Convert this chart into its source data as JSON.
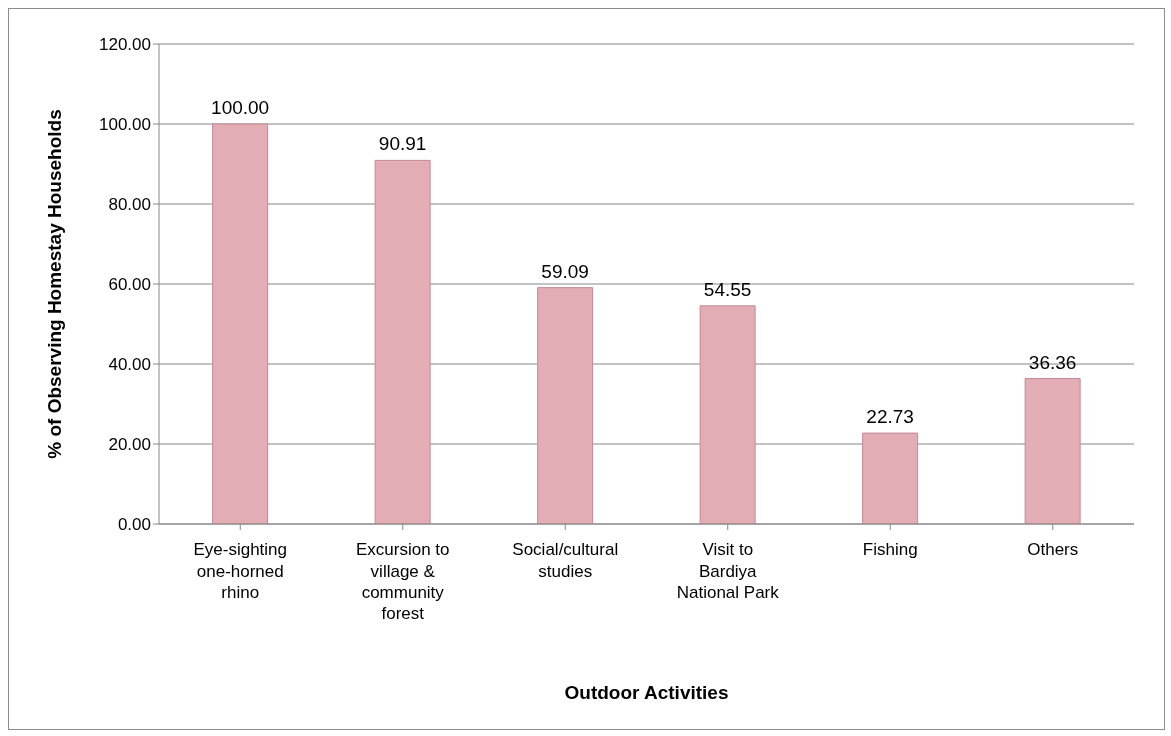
{
  "chart_data": {
    "type": "bar",
    "xlabel": "Outdoor Activities",
    "ylabel": "% of Observing Homestay Households",
    "categories": [
      "Eye-sighting one-horned rhino",
      "Excursion to village & community forest",
      "Social/cultural studies",
      "Visit to Bardiya National Park",
      "Fishing",
      "Others"
    ],
    "values": [
      100.0,
      90.91,
      59.09,
      54.55,
      22.73,
      36.36
    ],
    "value_labels": [
      "100.00",
      "90.91",
      "59.09",
      "54.55",
      "22.73",
      "36.36"
    ],
    "color": "#e3adb5",
    "ylim": [
      0,
      120
    ],
    "yticks": [
      {
        "value": 0,
        "label": "0.00"
      },
      {
        "value": 20,
        "label": "20.00"
      },
      {
        "value": 40,
        "label": "40.00"
      },
      {
        "value": 60,
        "label": "60.00"
      },
      {
        "value": 80,
        "label": "80.00"
      },
      {
        "value": 100,
        "label": "100.00"
      },
      {
        "value": 120,
        "label": "120.00"
      }
    ],
    "grid": "y",
    "legend": false
  }
}
